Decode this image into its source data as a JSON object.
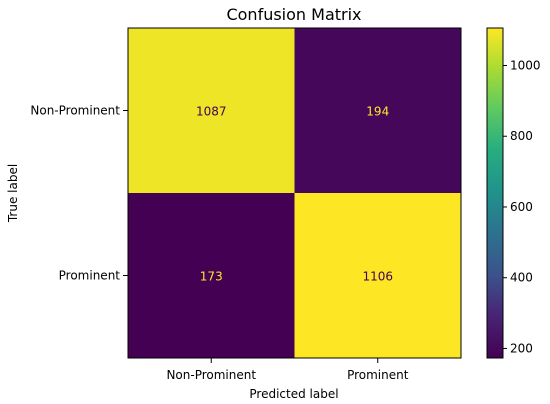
{
  "chart_data": {
    "type": "heatmap",
    "title": "Confusion Matrix",
    "xlabel": "Predicted label",
    "ylabel": "True label",
    "x_categories": [
      "Non-Prominent",
      "Prominent"
    ],
    "y_categories": [
      "Non-Prominent",
      "Prominent"
    ],
    "values": [
      [
        1087,
        194
      ],
      [
        173,
        1106
      ]
    ],
    "colormap": "viridis",
    "colorbar": {
      "ticks": [
        200,
        400,
        600,
        800,
        1000
      ],
      "tick_labels": [
        "200",
        "400",
        "600",
        "800",
        "1000"
      ],
      "vmin": 173,
      "vmax": 1106
    },
    "cell_text_color_on_dark": "#fde725",
    "cell_text_color_on_light": "#440154"
  }
}
